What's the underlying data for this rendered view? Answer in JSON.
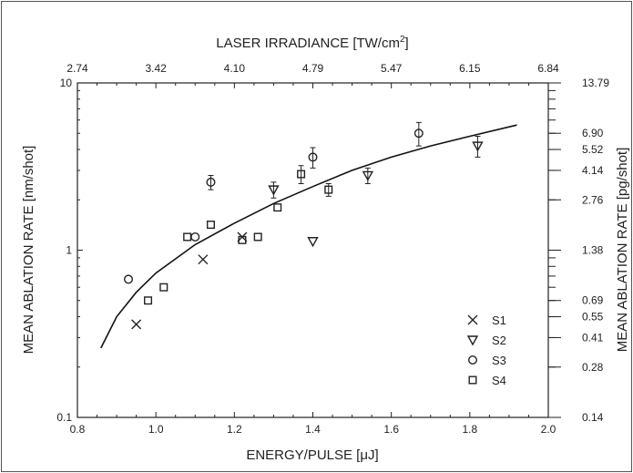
{
  "chart_data": {
    "type": "scatter",
    "xlabel": "ENERGY/PULSE [μJ]",
    "ylabel": "MEAN ABLATION RATE [nm/shot]",
    "top_axis_label_main": "LASER IRRADIANCE [TW/cm",
    "top_axis_label_sup": "2",
    "top_axis_label_end": "]",
    "right_axis_label": "MEAN ABLATION RATE [pg/shot]",
    "xlim": [
      0.8,
      2.0
    ],
    "ylim": [
      0.1,
      10
    ],
    "yscale": "log",
    "x_ticks": [
      "0.8",
      "1.0",
      "1.2",
      "1.4",
      "1.6",
      "1.8",
      "2.0"
    ],
    "y_ticks": [
      {
        "value": 0.1,
        "label": "0.1"
      },
      {
        "value": 1,
        "label": "1"
      },
      {
        "value": 10,
        "label": "10"
      }
    ],
    "top_ticks": [
      {
        "energy": 0.8,
        "label": "2.74"
      },
      {
        "energy": 1.0,
        "label": "3.42"
      },
      {
        "energy": 1.2,
        "label": "4.10"
      },
      {
        "energy": 1.4,
        "label": "4.79"
      },
      {
        "energy": 1.6,
        "label": "5.47"
      },
      {
        "energy": 1.8,
        "label": "6.15"
      },
      {
        "energy": 2.0,
        "label": "6.84"
      }
    ],
    "right_ticks": [
      {
        "rate": 10,
        "label": "13.79"
      },
      {
        "rate": 5.0,
        "label": "6.90"
      },
      {
        "rate": 4.0,
        "label": "5.52"
      },
      {
        "rate": 3.0,
        "label": "4.14"
      },
      {
        "rate": 2.0,
        "label": "2.76"
      },
      {
        "rate": 1.0,
        "label": "1.38"
      },
      {
        "rate": 0.5,
        "label": "0.69"
      },
      {
        "rate": 0.4,
        "label": "0.55"
      },
      {
        "rate": 0.3,
        "label": "0.41"
      },
      {
        "rate": 0.2,
        "label": "0.28"
      },
      {
        "rate": 0.1,
        "label": "0.14"
      }
    ],
    "fit_curve": [
      [
        0.86,
        0.26
      ],
      [
        0.9,
        0.4
      ],
      [
        0.95,
        0.56
      ],
      [
        1.0,
        0.73
      ],
      [
        1.1,
        1.08
      ],
      [
        1.2,
        1.45
      ],
      [
        1.3,
        1.9
      ],
      [
        1.4,
        2.4
      ],
      [
        1.5,
        3.0
      ],
      [
        1.6,
        3.6
      ],
      [
        1.7,
        4.2
      ],
      [
        1.8,
        4.8
      ],
      [
        1.92,
        5.6
      ]
    ],
    "series": [
      {
        "name": "S1",
        "marker": "x",
        "points": [
          {
            "x": 0.95,
            "y": 0.36
          },
          {
            "x": 1.12,
            "y": 0.88
          },
          {
            "x": 1.22,
            "y": 1.2
          }
        ]
      },
      {
        "name": "S2",
        "marker": "triangle-down",
        "points": [
          {
            "x": 1.3,
            "y": 2.3,
            "err": 0.25
          },
          {
            "x": 1.4,
            "y": 1.13
          },
          {
            "x": 1.54,
            "y": 2.8,
            "err": 0.3
          },
          {
            "x": 1.82,
            "y": 4.2,
            "err": 0.6
          }
        ]
      },
      {
        "name": "S3",
        "marker": "circle",
        "points": [
          {
            "x": 0.93,
            "y": 0.67
          },
          {
            "x": 1.1,
            "y": 1.2
          },
          {
            "x": 1.14,
            "y": 2.55,
            "err": 0.25
          },
          {
            "x": 1.4,
            "y": 3.6,
            "err": 0.5
          },
          {
            "x": 1.67,
            "y": 5.0,
            "err": 0.8
          }
        ]
      },
      {
        "name": "S4",
        "marker": "square",
        "points": [
          {
            "x": 0.98,
            "y": 0.5
          },
          {
            "x": 1.02,
            "y": 0.6
          },
          {
            "x": 1.08,
            "y": 1.2
          },
          {
            "x": 1.14,
            "y": 1.42
          },
          {
            "x": 1.22,
            "y": 1.15
          },
          {
            "x": 1.26,
            "y": 1.2
          },
          {
            "x": 1.31,
            "y": 1.8
          },
          {
            "x": 1.37,
            "y": 2.85,
            "err": 0.35
          },
          {
            "x": 1.44,
            "y": 2.3,
            "err": 0.2
          }
        ]
      }
    ],
    "legend_position": "lower-right",
    "grid": false
  }
}
